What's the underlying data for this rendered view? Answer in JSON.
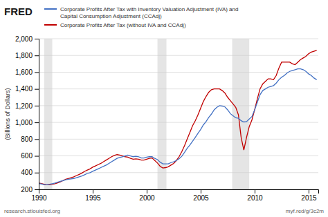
{
  "chart_data": {
    "type": "line",
    "y_label": "(Billions of Dollars)",
    "annotations": [
      "FRED",
      "research.stlouisfed.org",
      "myf.red/g/3c2m"
    ],
    "legend": "top",
    "grid": true,
    "xlim": [
      1990,
      2015.9
    ],
    "xticks": [
      1990,
      1995,
      2000,
      2005,
      2010,
      2015
    ],
    "ylim": [
      200,
      2000
    ],
    "yticks": [
      200,
      400,
      600,
      800,
      {
        "value": 1000,
        "label": "1,000"
      },
      {
        "value": 1200,
        "label": "1,200"
      },
      {
        "value": 1400,
        "label": "1,400"
      },
      {
        "value": 1600,
        "label": "1,600"
      },
      {
        "value": 1800,
        "label": "1,800"
      },
      {
        "value": 2000,
        "label": "2,000"
      }
    ],
    "recession_bands": [
      [
        1990.5,
        1991.25
      ],
      [
        2001.0,
        2001.83
      ],
      [
        2007.92,
        2009.5
      ]
    ],
    "x": [
      1990.0,
      1990.25,
      1990.5,
      1990.75,
      1991.0,
      1991.25,
      1991.5,
      1991.75,
      1992.0,
      1992.25,
      1992.5,
      1992.75,
      1993.0,
      1993.25,
      1993.5,
      1993.75,
      1994.0,
      1994.25,
      1994.5,
      1994.75,
      1995.0,
      1995.25,
      1995.5,
      1995.75,
      1996.0,
      1996.25,
      1996.5,
      1996.75,
      1997.0,
      1997.25,
      1997.5,
      1997.75,
      1998.0,
      1998.25,
      1998.5,
      1998.75,
      1999.0,
      1999.25,
      1999.5,
      1999.75,
      2000.0,
      2000.25,
      2000.5,
      2000.75,
      2001.0,
      2001.25,
      2001.5,
      2001.75,
      2002.0,
      2002.25,
      2002.5,
      2002.75,
      2003.0,
      2003.25,
      2003.5,
      2003.75,
      2004.0,
      2004.25,
      2004.5,
      2004.75,
      2005.0,
      2005.25,
      2005.5,
      2005.75,
      2006.0,
      2006.25,
      2006.5,
      2006.75,
      2007.0,
      2007.25,
      2007.5,
      2007.75,
      2008.0,
      2008.25,
      2008.5,
      2008.75,
      2009.0,
      2009.25,
      2009.5,
      2009.75,
      2010.0,
      2010.25,
      2010.5,
      2010.75,
      2011.0,
      2011.25,
      2011.5,
      2011.75,
      2012.0,
      2012.25,
      2012.5,
      2012.75,
      2013.0,
      2013.25,
      2013.5,
      2013.75,
      2014.0,
      2014.25,
      2014.5,
      2014.75,
      2015.0,
      2015.25,
      2015.5,
      2015.75
    ],
    "series": [
      {
        "name": "Corporate Profits After Tax with Inventory Valuation Adjustment (IVA) and\nCapital Consumption Adjustment (CCAdj)",
        "color": "#4472c4",
        "values": [
          270,
          265,
          255,
          255,
          260,
          268,
          275,
          285,
          295,
          305,
          315,
          320,
          325,
          330,
          340,
          350,
          360,
          375,
          390,
          400,
          415,
          430,
          445,
          460,
          475,
          490,
          510,
          530,
          550,
          570,
          580,
          590,
          600,
          610,
          600,
          590,
          595,
          590,
          575,
          575,
          585,
          590,
          590,
          570,
          555,
          525,
          505,
          505,
          505,
          520,
          530,
          545,
          565,
          595,
          640,
          690,
          730,
          775,
          820,
          870,
          915,
          970,
          1010,
          1060,
          1100,
          1150,
          1180,
          1200,
          1195,
          1185,
          1150,
          1105,
          1080,
          1055,
          1050,
          1020,
          1005,
          1010,
          1040,
          1070,
          1150,
          1240,
          1330,
          1380,
          1400,
          1420,
          1430,
          1440,
          1470,
          1510,
          1540,
          1560,
          1590,
          1610,
          1620,
          1630,
          1640,
          1640,
          1630,
          1610,
          1580,
          1560,
          1530,
          1510
        ]
      },
      {
        "name": "Corporate Profits After Tax (without IVA and CCAdj)",
        "color": "#c00000",
        "values": [
          275,
          270,
          260,
          255,
          255,
          260,
          268,
          278,
          290,
          305,
          320,
          330,
          340,
          350,
          365,
          378,
          395,
          415,
          430,
          445,
          465,
          480,
          495,
          510,
          530,
          550,
          570,
          590,
          605,
          615,
          610,
          600,
          590,
          585,
          570,
          560,
          565,
          560,
          550,
          550,
          560,
          570,
          575,
          545,
          515,
          475,
          455,
          460,
          470,
          490,
          510,
          545,
          590,
          650,
          720,
          800,
          880,
          960,
          1020,
          1090,
          1170,
          1250,
          1310,
          1360,
          1390,
          1400,
          1400,
          1400,
          1380,
          1350,
          1300,
          1260,
          1220,
          1180,
          1090,
          820,
          670,
          820,
          950,
          1030,
          1150,
          1280,
          1400,
          1460,
          1490,
          1520,
          1520,
          1510,
          1560,
          1650,
          1720,
          1720,
          1720,
          1720,
          1700,
          1690,
          1720,
          1750,
          1770,
          1790,
          1820,
          1840,
          1850,
          1860
        ]
      }
    ]
  }
}
